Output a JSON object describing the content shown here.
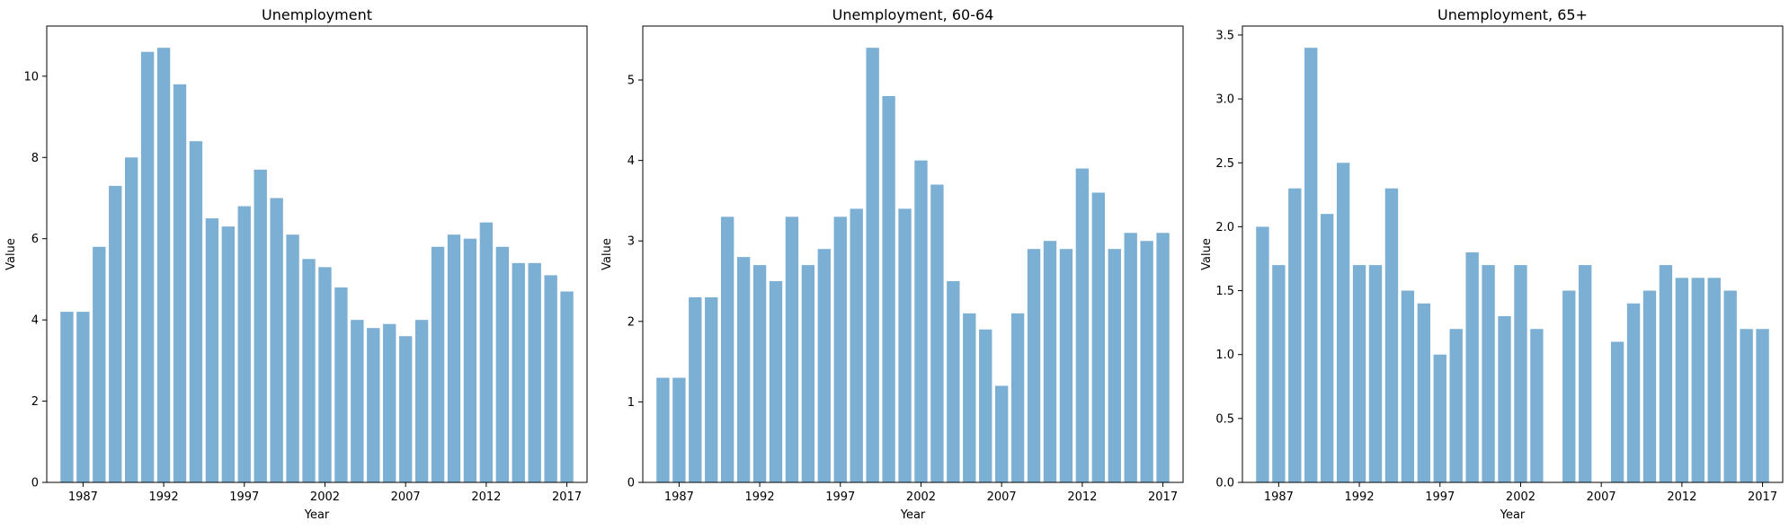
{
  "chart_data": [
    {
      "type": "bar",
      "title": "Unemployment",
      "xlabel": "Year",
      "ylabel": "Value",
      "x": [
        1986,
        1987,
        1988,
        1989,
        1990,
        1991,
        1992,
        1993,
        1994,
        1995,
        1996,
        1997,
        1998,
        1999,
        2000,
        2001,
        2002,
        2003,
        2004,
        2005,
        2006,
        2007,
        2008,
        2009,
        2010,
        2011,
        2012,
        2013,
        2014,
        2015,
        2016,
        2017
      ],
      "values": [
        4.2,
        4.2,
        5.8,
        7.3,
        8.0,
        10.6,
        10.7,
        9.8,
        8.4,
        6.5,
        6.3,
        6.8,
        7.7,
        7.0,
        6.1,
        5.5,
        5.3,
        4.8,
        4.0,
        3.8,
        3.9,
        3.6,
        4.0,
        5.8,
        6.1,
        6.0,
        6.4,
        5.8,
        5.4,
        5.4,
        5.1,
        4.7
      ],
      "xticks": [
        1987,
        1992,
        1997,
        2002,
        2007,
        2012,
        2017
      ],
      "xtick_labels": [
        "1987",
        "1992",
        "1997",
        "2002",
        "2007",
        "2012",
        "2017"
      ],
      "yticks": [
        0,
        2,
        4,
        6,
        8,
        10
      ],
      "ytick_labels": [
        "0",
        "2",
        "4",
        "6",
        "8",
        "10"
      ],
      "ylim": [
        0,
        11.235
      ],
      "xlim": [
        1984.75,
        2018.25
      ],
      "color": "#7bafd4"
    },
    {
      "type": "bar",
      "title": "Unemployment, 60-64",
      "xlabel": "Year",
      "ylabel": "Value",
      "x": [
        1986,
        1987,
        1988,
        1989,
        1990,
        1991,
        1992,
        1993,
        1994,
        1995,
        1996,
        1997,
        1998,
        1999,
        2000,
        2001,
        2002,
        2003,
        2004,
        2005,
        2006,
        2007,
        2008,
        2009,
        2010,
        2011,
        2012,
        2013,
        2014,
        2015,
        2016,
        2017
      ],
      "values": [
        1.3,
        1.3,
        2.3,
        2.3,
        3.3,
        2.8,
        2.7,
        2.5,
        3.3,
        2.7,
        2.9,
        3.3,
        3.4,
        5.4,
        4.8,
        3.4,
        4.0,
        3.7,
        2.5,
        2.1,
        1.9,
        1.2,
        2.1,
        2.9,
        3.0,
        2.9,
        3.9,
        3.6,
        2.9,
        3.1,
        3.0,
        3.1
      ],
      "xticks": [
        1987,
        1992,
        1997,
        2002,
        2007,
        2012,
        2017
      ],
      "xtick_labels": [
        "1987",
        "1992",
        "1997",
        "2002",
        "2007",
        "2012",
        "2017"
      ],
      "yticks": [
        0,
        1,
        2,
        3,
        4,
        5
      ],
      "ytick_labels": [
        "0",
        "1",
        "2",
        "3",
        "4",
        "5"
      ],
      "ylim": [
        0,
        5.67
      ],
      "xlim": [
        1984.75,
        2018.25
      ],
      "color": "#7bafd4"
    },
    {
      "type": "bar",
      "title": "Unemployment, 65+",
      "xlabel": "Year",
      "ylabel": "Value",
      "x": [
        1986,
        1987,
        1988,
        1989,
        1990,
        1991,
        1992,
        1993,
        1994,
        1995,
        1996,
        1997,
        1998,
        1999,
        2000,
        2001,
        2002,
        2003,
        2004,
        2005,
        2006,
        2007,
        2008,
        2009,
        2010,
        2011,
        2012,
        2013,
        2014,
        2015,
        2016,
        2017
      ],
      "values": [
        2.0,
        1.7,
        2.3,
        3.4,
        2.1,
        2.5,
        1.7,
        1.7,
        2.3,
        1.5,
        1.4,
        1.0,
        1.2,
        1.8,
        1.7,
        1.3,
        1.7,
        1.2,
        null,
        1.5,
        1.7,
        null,
        1.1,
        1.4,
        1.5,
        1.7,
        1.6,
        1.6,
        1.6,
        1.5,
        1.2,
        1.2
      ],
      "xticks": [
        1987,
        1992,
        1997,
        2002,
        2007,
        2012,
        2017
      ],
      "xtick_labels": [
        "1987",
        "1992",
        "1997",
        "2002",
        "2007",
        "2012",
        "2017"
      ],
      "yticks": [
        0,
        0.5,
        1.0,
        1.5,
        2.0,
        2.5,
        3.0,
        3.5
      ],
      "ytick_labels": [
        "0.0",
        "0.5",
        "1.0",
        "1.5",
        "2.0",
        "2.5",
        "3.0",
        "3.5"
      ],
      "ylim": [
        0,
        3.57
      ],
      "xlim": [
        1984.75,
        2018.25
      ],
      "color": "#7bafd4"
    }
  ]
}
